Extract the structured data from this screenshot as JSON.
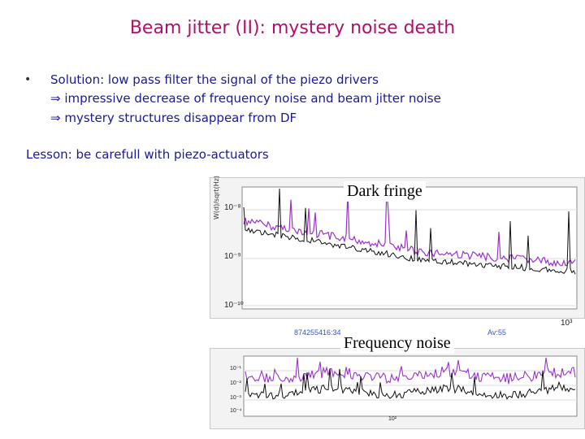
{
  "slide": {
    "title": "Beam jitter (II): mystery noise death",
    "bullet_symbol": "•",
    "lines": [
      "Solution: low pass filter the signal of the piezo drivers",
      "⇒ impressive decrease of frequency noise and beam jitter noise",
      "⇒ mystery structures disappear from DF"
    ],
    "lesson": "Lesson: be carefull with piezo-actuators"
  },
  "figures": {
    "top_label": "Dark fringe",
    "bottom_label": "Frequency noise",
    "top_yaxis_title": "W(d)/sqrt(Hz)",
    "top_yticks": [
      "10⁻⁸",
      "10⁻⁹",
      "10⁻¹⁰"
    ],
    "top_xtick": "10³",
    "bottom_yticks": [
      "10⁻¹",
      "10⁻²",
      "10⁻³",
      "10⁻⁴"
    ],
    "bottom_xtick": "10²",
    "stamp_left": "874255416:34",
    "stamp_right": "Av:55",
    "colors": {
      "before": "#9a33cc",
      "after": "#111111",
      "title": "#b0106a",
      "text": "#1a1a99"
    }
  }
}
